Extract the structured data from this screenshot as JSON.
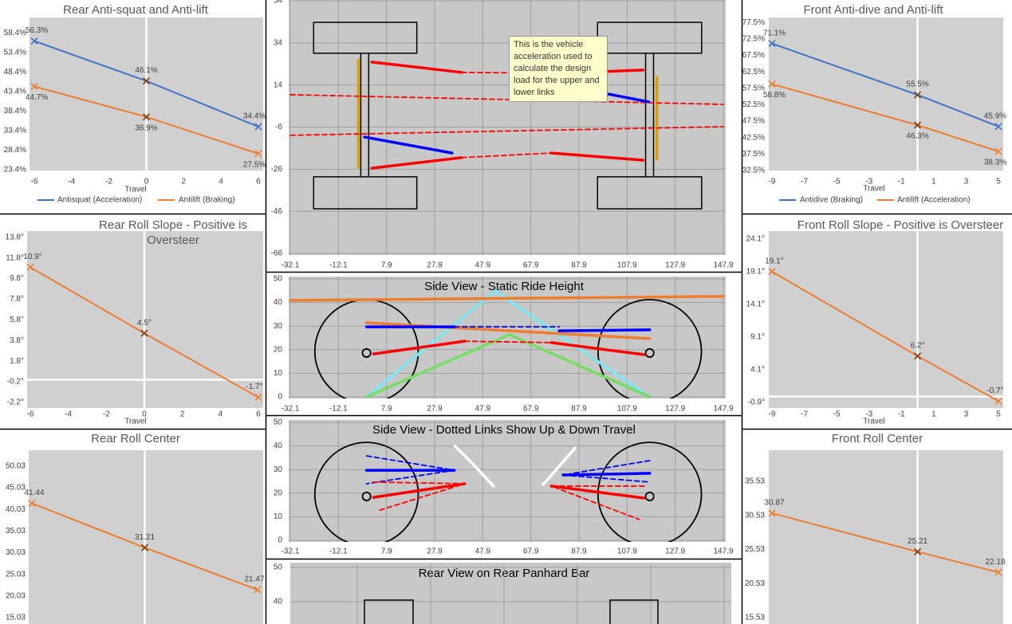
{
  "chart_data": [
    {
      "type": "line",
      "title": "Rear Anti-squat and Anti-lift",
      "x_label": "Travel",
      "x": [
        -6,
        0,
        6
      ],
      "xlim": [
        -6,
        6
      ],
      "xticks": [
        -6,
        -4,
        -2,
        0,
        2,
        4,
        6
      ],
      "ylim": [
        23.4,
        62.3
      ],
      "yticks": [
        {
          "value": 23.4,
          "label": "23.4%"
        },
        {
          "value": 28.4,
          "label": "28.4%"
        },
        {
          "value": 33.4,
          "label": "33.4%"
        },
        {
          "value": 38.4,
          "label": "38.4%"
        },
        {
          "value": 43.4,
          "label": "43.4%"
        },
        {
          "value": 48.4,
          "label": "48.4%"
        },
        {
          "value": 53.4,
          "label": "53.4%"
        },
        {
          "value": 58.4,
          "label": "58.4%"
        }
      ],
      "legend": "bottom",
      "series": [
        {
          "name": "Antisquat (Acceleration)",
          "color": "#4472c4",
          "values": [
            56.3,
            46.1,
            34.4
          ],
          "value_labels": [
            "56.3%",
            "46.1%",
            "34.4%"
          ]
        },
        {
          "name": "Antilift (Braking)",
          "color": "#ed7d31",
          "values": [
            44.7,
            36.9,
            27.5
          ],
          "value_labels": [
            "44.7%",
            "36.9%",
            "27.5%"
          ]
        }
      ]
    },
    {
      "type": "line",
      "title": "Rear Roll Slope - Positive is Oversteer",
      "x_label": "Travel",
      "x": [
        -6,
        0,
        6
      ],
      "xlim": [
        -6,
        6
      ],
      "xticks": [
        -6,
        -4,
        -2,
        0,
        2,
        4,
        6
      ],
      "ylim": [
        -2.74,
        14.4
      ],
      "yticks": [
        {
          "value": -2.2,
          "label": "-2.2°"
        },
        {
          "value": -0.2,
          "label": "-0.2°"
        },
        {
          "value": 1.8,
          "label": "1.8°"
        },
        {
          "value": 3.8,
          "label": "3.8°"
        },
        {
          "value": 5.8,
          "label": "5.8°"
        },
        {
          "value": 7.8,
          "label": "7.8°"
        },
        {
          "value": 9.8,
          "label": "9.8°"
        },
        {
          "value": 11.8,
          "label": "11.8°"
        },
        {
          "value": 13.8,
          "label": "13.8°"
        }
      ],
      "series": [
        {
          "color": "#ed7d31",
          "values": [
            10.9,
            4.5,
            -1.7
          ],
          "value_labels": [
            "10.9°",
            "4.5°",
            "-1.7°"
          ]
        }
      ]
    },
    {
      "type": "line",
      "title": "Rear Roll Center",
      "x": [
        -6,
        0,
        6
      ],
      "xlim": [
        -6,
        6
      ],
      "ylim": [
        13.56,
        53.7
      ],
      "yticks": [
        15.03,
        20.03,
        25.03,
        30.03,
        35.03,
        40.03,
        45.03,
        50.03
      ],
      "series": [
        {
          "color": "#ed7d31",
          "values": [
            41.44,
            31.21,
            21.47
          ]
        }
      ]
    },
    {
      "type": "line",
      "title": "Front Anti-dive and Anti-lift",
      "x_label": "Travel",
      "x": [
        -9,
        0,
        5
      ],
      "xlim": [
        -9,
        5
      ],
      "xticks": [
        -9,
        -7,
        -5,
        -3,
        -1,
        1,
        3,
        5
      ],
      "ylim": [
        32.5,
        79
      ],
      "yticks": [
        {
          "value": 32.5,
          "label": "32.5%"
        },
        {
          "value": 37.5,
          "label": "37.5%"
        },
        {
          "value": 42.5,
          "label": "42.5%"
        },
        {
          "value": 47.5,
          "label": "47.5%"
        },
        {
          "value": 52.5,
          "label": "52.5%"
        },
        {
          "value": 57.5,
          "label": "57.5%"
        },
        {
          "value": 62.5,
          "label": "62.5%"
        },
        {
          "value": 67.5,
          "label": "67.5%"
        },
        {
          "value": 72.5,
          "label": "72.5%"
        },
        {
          "value": 77.5,
          "label": "77.5%"
        }
      ],
      "legend": "bottom",
      "series": [
        {
          "name": "Antidive (Braking)",
          "color": "#4472c4",
          "values": [
            71.1,
            55.5,
            45.9
          ],
          "value_labels": [
            "71.1%",
            "55.5%",
            "45.9%"
          ]
        },
        {
          "name": "Antilift (Acceleration)",
          "color": "#ed7d31",
          "values": [
            58.8,
            46.3,
            38.3
          ],
          "value_labels": [
            "58.8%",
            "46.3%",
            "38.3%"
          ]
        }
      ]
    },
    {
      "type": "line",
      "title": "Front Roll Slope - Positive is Oversteer",
      "x_label": "Travel",
      "x": [
        -9,
        0,
        5
      ],
      "xlim": [
        -9,
        5
      ],
      "xticks": [
        -9,
        -7,
        -5,
        -3,
        -1,
        1,
        3,
        5
      ],
      "ylim": [
        -1.75,
        25.3
      ],
      "yticks": [
        {
          "value": -0.9,
          "label": "-0.9°"
        },
        {
          "value": 4.1,
          "label": "4.1°"
        },
        {
          "value": 9.1,
          "label": "9.1°"
        },
        {
          "value": 14.1,
          "label": "14.1°"
        },
        {
          "value": 19.1,
          "label": "19.1°"
        },
        {
          "value": 24.1,
          "label": "24.1°"
        }
      ],
      "series": [
        {
          "color": "#ed7d31",
          "values": [
            19.1,
            6.2,
            -0.7
          ],
          "value_labels": [
            "19.1°",
            "6.2°",
            "-0.7°"
          ]
        }
      ]
    },
    {
      "type": "line",
      "title": "Front Roll Center",
      "x": [
        -9,
        0,
        5
      ],
      "xlim": [
        -9,
        5
      ],
      "ylim": [
        14.6,
        40.1
      ],
      "yticks": [
        15.53,
        20.53,
        25.53,
        30.53,
        35.53
      ],
      "series": [
        {
          "color": "#ed7d31",
          "values": [
            30.87,
            25.21,
            22.18
          ]
        }
      ]
    },
    {
      "type": "scatter",
      "annotation": "This is the vehicle acceleration used to calculate the design load for the upper and lower links",
      "xlim": [
        -32.1,
        147.9
      ],
      "xticks": [
        -32.1,
        -12.1,
        7.9,
        27.9,
        47.9,
        67.9,
        87.9,
        107.9,
        127.9,
        147.9
      ],
      "ylim": [
        -66,
        54
      ],
      "yticks": [
        -66,
        -46,
        -26,
        -6,
        14,
        34,
        54
      ],
      "grid": true,
      "series": [
        {
          "color": "#000000",
          "x": [
            -22.4,
            20.5,
            20.5,
            -22.4,
            -22.4
          ],
          "values": [
            43.8,
            43.8,
            29.1,
            29.1,
            43.8
          ]
        },
        {
          "color": "#000000",
          "x": [
            -22.4,
            20.5,
            20.5,
            -22.4,
            -22.4
          ],
          "values": [
            -29.6,
            -29.6,
            -44.8,
            -44.8,
            -29.6
          ]
        },
        {
          "color": "#000000",
          "x": [
            95.6,
            138.9,
            138.9,
            95.6,
            95.6
          ],
          "values": [
            43.8,
            43.8,
            29.1,
            29.1,
            43.8
          ]
        },
        {
          "color": "#000000",
          "x": [
            95.6,
            138.9,
            138.9,
            95.6,
            95.6
          ],
          "values": [
            -29.6,
            -29.6,
            -44.8,
            -44.8,
            -29.6
          ]
        },
        {
          "color": "#000000",
          "x": [
            -2.8,
            -2.8
          ],
          "values": [
            29.1,
            -29.6
          ]
        },
        {
          "color": "#000000",
          "x": [
            0.5,
            0.5
          ],
          "values": [
            29.1,
            -29.6
          ]
        },
        {
          "color": "#000000",
          "x": [
            115.6,
            115.6
          ],
          "values": [
            29.1,
            -29.6
          ]
        },
        {
          "color": "#000000",
          "x": [
            118.9,
            118.9
          ],
          "values": [
            29.1,
            -29.6
          ]
        },
        {
          "color": "#d4a017",
          "x": [
            -3.8,
            -3.8
          ],
          "values": [
            26.0,
            -25.1
          ]
        },
        {
          "color": "#d4a017",
          "x": [
            120.3,
            120.3
          ],
          "values": [
            17.7,
            -21.3
          ]
        },
        {
          "color": "#ff0000",
          "dash": true,
          "x": [
            -32.1,
            147.9
          ],
          "values": [
            9.4,
            4.8
          ]
        },
        {
          "color": "#ff0000",
          "dash": true,
          "x": [
            -32.1,
            147.9
          ],
          "values": [
            -9.9,
            -5.8
          ]
        },
        {
          "color": "#ff0000",
          "dash": true,
          "x": [
            39.1,
            79.7
          ],
          "values": [
            20.0,
            19.6
          ]
        },
        {
          "color": "#ff0000",
          "dash": true,
          "x": [
            39.1,
            76.4
          ],
          "values": [
            -20.5,
            -18.3
          ]
        },
        {
          "color": "#ff0000",
          "x": [
            1.8,
            39.1
          ],
          "values": [
            24.9,
            20.0
          ]
        },
        {
          "color": "#ff0000",
          "x": [
            79.7,
            114.6
          ],
          "values": [
            19.6,
            21.1
          ]
        },
        {
          "color": "#ff0000",
          "x": [
            1.8,
            39.1
          ],
          "values": [
            -25.5,
            -20.5
          ]
        },
        {
          "color": "#ff0000",
          "x": [
            76.4,
            114.6
          ],
          "values": [
            -18.3,
            -21.7
          ]
        },
        {
          "color": "#0000ff",
          "x": [
            -1.2,
            35.1
          ],
          "values": [
            -10.7,
            -18.3
          ]
        },
        {
          "color": "#0000ff",
          "x": [
            99.6,
            116.9
          ],
          "values": [
            9.8,
            6.0
          ]
        }
      ]
    },
    {
      "type": "scatter",
      "title": "Side View - Static Ride Height",
      "xlim": [
        -32.1,
        147.9
      ],
      "xticks": [
        -32.1,
        -12.1,
        7.9,
        27.9,
        47.9,
        67.9,
        87.9,
        107.9,
        127.9,
        147.9
      ],
      "ylim": [
        0,
        50
      ],
      "yticks": [
        0,
        10,
        20,
        30,
        40,
        50
      ],
      "grid": true,
      "circles": [
        {
          "color": "#000000",
          "x": -0.4,
          "y": 19.3,
          "r": 21.5
        },
        {
          "color": "#000000",
          "x": 117.3,
          "y": 19.3,
          "r": 21.5
        },
        {
          "color": "#000000",
          "x": -0.4,
          "y": 18.6,
          "r": 1.7
        },
        {
          "color": "#000000",
          "x": 117.3,
          "y": 18.6,
          "r": 1.7
        }
      ],
      "series": [
        {
          "color": "#7fe5f0",
          "x": [
            -0.4,
            53.0,
            117.3
          ],
          "values": [
            0,
            44.9,
            0
          ]
        },
        {
          "color": "#77dd66",
          "x": [
            -0.4,
            59.0,
            117.3
          ],
          "values": [
            0,
            26.4,
            0
          ]
        },
        {
          "color": "#ed7d31",
          "x": [
            -32.1,
            147.9
          ],
          "values": [
            40.9,
            42.6
          ]
        },
        {
          "color": "#ed7d31",
          "x": [
            -0.4,
            117.3
          ],
          "values": [
            31.4,
            24.7
          ]
        },
        {
          "color": "#0000ff",
          "dash": true,
          "x": [
            36.1,
            79.7
          ],
          "values": [
            29.7,
            29.7
          ]
        },
        {
          "color": "#ff0000",
          "dash": true,
          "x": [
            40.4,
            76.4
          ],
          "values": [
            23.6,
            23.0
          ]
        },
        {
          "color": "#0000ff",
          "x": [
            -0.4,
            36.1
          ],
          "values": [
            29.7,
            29.7
          ]
        },
        {
          "color": "#0000ff",
          "x": [
            79.7,
            117.3
          ],
          "values": [
            28.0,
            28.4
          ]
        },
        {
          "color": "#ff0000",
          "x": [
            2.5,
            40.4
          ],
          "values": [
            18.2,
            23.6
          ]
        },
        {
          "color": "#ff0000",
          "x": [
            76.4,
            115.0
          ],
          "values": [
            23.0,
            17.9
          ]
        }
      ]
    },
    {
      "type": "scatter",
      "title": "Side View - Dotted Links Show Up & Down Travel",
      "xlim": [
        -32.1,
        147.9
      ],
      "xticks": [
        -32.1,
        -12.1,
        7.9,
        27.9,
        47.9,
        67.9,
        87.9,
        107.9,
        127.9,
        147.9
      ],
      "ylim": [
        0,
        50
      ],
      "yticks": [
        0,
        10,
        20,
        30,
        40,
        50
      ],
      "grid": true,
      "circles": [
        {
          "color": "#000000",
          "x": -0.4,
          "y": 19.6,
          "r": 21.5
        },
        {
          "color": "#000000",
          "x": 117.3,
          "y": 19.6,
          "r": 21.5
        },
        {
          "color": "#000000",
          "x": -0.4,
          "y": 18.6,
          "r": 1.7
        },
        {
          "color": "#000000",
          "x": 117.3,
          "y": 18.6,
          "r": 1.7
        }
      ],
      "series": [
        {
          "color": "#ffffff",
          "x": [
            36.4,
            44.7,
            52.4
          ],
          "values": [
            39.9,
            31.4,
            23.0
          ]
        },
        {
          "color": "#ffffff",
          "x": [
            73.0,
            79.7,
            86.3
          ],
          "values": [
            23.6,
            31.4,
            39.2
          ]
        },
        {
          "color": "#0000ff",
          "dash": true,
          "x": [
            -0.4,
            36.1,
            -0.4
          ],
          "values": [
            35.8,
            29.7,
            24.0
          ]
        },
        {
          "color": "#ff0000",
          "dash": true,
          "x": [
            2.5,
            40.4,
            4.2
          ],
          "values": [
            24.7,
            24.0,
            12.5
          ]
        },
        {
          "color": "#0000ff",
          "dash": true,
          "x": [
            117.3,
            81.3,
            117.3
          ],
          "values": [
            33.8,
            27.7,
            24.7
          ]
        },
        {
          "color": "#ff0000",
          "dash": true,
          "x": [
            115.0,
            76.4,
            113.0
          ],
          "values": [
            23.0,
            23.0,
            8.8
          ]
        },
        {
          "color": "#0000ff",
          "x": [
            -0.4,
            36.1
          ],
          "values": [
            29.7,
            29.7
          ]
        },
        {
          "color": "#ff0000",
          "x": [
            2.5,
            40.4
          ],
          "values": [
            18.2,
            24.0
          ]
        },
        {
          "color": "#0000ff",
          "x": [
            81.3,
            117.3
          ],
          "values": [
            27.7,
            28.4
          ]
        },
        {
          "color": "#ff0000",
          "x": [
            76.4,
            115.0
          ],
          "values": [
            23.0,
            17.9
          ]
        }
      ]
    },
    {
      "type": "scatter",
      "title": "Rear View on Rear Panhard Bar",
      "ylim": [
        33.5,
        50.9
      ],
      "yticks": [
        40,
        50
      ],
      "grid": true
    }
  ]
}
